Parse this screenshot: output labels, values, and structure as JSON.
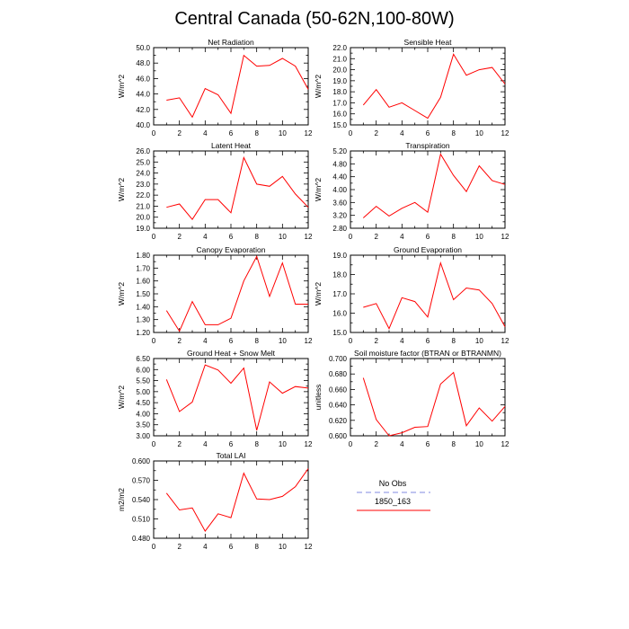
{
  "figure": {
    "title": "Central Canada (50-62N,100-80W)"
  },
  "legend": {
    "entries": [
      {
        "label": "No Obs",
        "color": "#9aa0e6",
        "style": "dashed"
      },
      {
        "label": "1850_163",
        "color": "#ff0000",
        "style": "solid"
      }
    ]
  },
  "chart_data": [
    {
      "type": "line",
      "title": "Net Radiation",
      "ylabel": "W/m^2",
      "x": [
        1,
        2,
        3,
        4,
        5,
        6,
        7,
        8,
        9,
        10,
        11,
        12
      ],
      "series": [
        {
          "name": "1850_163",
          "values": [
            43.2,
            43.5,
            41.0,
            44.7,
            43.9,
            41.5,
            49.0,
            47.6,
            47.7,
            48.6,
            47.6,
            44.6
          ]
        }
      ],
      "xlim": [
        0,
        12
      ],
      "ylim": [
        40,
        50
      ],
      "xticks": [
        0,
        2,
        4,
        6,
        8,
        10,
        12
      ],
      "yticks": [
        40,
        42,
        44,
        46,
        48,
        50
      ],
      "ytick_labels": [
        "40.0",
        "42.0",
        "44.0",
        "46.0",
        "48.0",
        "50.0"
      ]
    },
    {
      "type": "line",
      "title": "Sensible Heat",
      "ylabel": "W/m^2",
      "x": [
        1,
        2,
        3,
        4,
        5,
        6,
        7,
        8,
        9,
        10,
        11,
        12
      ],
      "series": [
        {
          "name": "1850_163",
          "values": [
            16.8,
            18.2,
            16.6,
            17.0,
            16.3,
            15.6,
            17.5,
            21.4,
            19.5,
            20.0,
            20.2,
            18.7
          ]
        }
      ],
      "xlim": [
        0,
        12
      ],
      "ylim": [
        15,
        22
      ],
      "xticks": [
        0,
        2,
        4,
        6,
        8,
        10,
        12
      ],
      "yticks": [
        15,
        16,
        17,
        18,
        19,
        20,
        21,
        22
      ],
      "ytick_labels": [
        "15.0",
        "16.0",
        "17.0",
        "18.0",
        "19.0",
        "20.0",
        "21.0",
        "22.0"
      ]
    },
    {
      "type": "line",
      "title": "Latent Heat",
      "ylabel": "W/m^2",
      "x": [
        1,
        2,
        3,
        4,
        5,
        6,
        7,
        8,
        9,
        10,
        11,
        12
      ],
      "series": [
        {
          "name": "1850_163",
          "values": [
            20.9,
            21.2,
            19.8,
            21.6,
            21.6,
            20.4,
            25.4,
            23.0,
            22.8,
            23.7,
            22.1,
            20.9
          ]
        }
      ],
      "xlim": [
        0,
        12
      ],
      "ylim": [
        19,
        26
      ],
      "xticks": [
        0,
        2,
        4,
        6,
        8,
        10,
        12
      ],
      "yticks": [
        19,
        20,
        21,
        22,
        23,
        24,
        25,
        26
      ],
      "ytick_labels": [
        "19.0",
        "20.0",
        "21.0",
        "22.0",
        "23.0",
        "24.0",
        "25.0",
        "26.0"
      ]
    },
    {
      "type": "line",
      "title": "Transpiration",
      "ylabel": "W/m^2",
      "x": [
        1,
        2,
        3,
        4,
        5,
        6,
        7,
        8,
        9,
        10,
        11,
        12
      ],
      "series": [
        {
          "name": "1850_163",
          "values": [
            3.12,
            3.48,
            3.18,
            3.42,
            3.6,
            3.3,
            5.1,
            4.44,
            3.94,
            4.74,
            4.28,
            4.16
          ]
        }
      ],
      "xlim": [
        0,
        12
      ],
      "ylim": [
        2.8,
        5.2
      ],
      "xticks": [
        0,
        2,
        4,
        6,
        8,
        10,
        12
      ],
      "yticks": [
        2.8,
        3.2,
        3.6,
        4.0,
        4.4,
        4.8,
        5.2
      ],
      "ytick_labels": [
        "2.80",
        "3.20",
        "3.60",
        "4.00",
        "4.40",
        "4.80",
        "5.20"
      ]
    },
    {
      "type": "line",
      "title": "Canopy Evaporation",
      "ylabel": "W/m^2",
      "x": [
        1,
        2,
        3,
        4,
        5,
        6,
        7,
        8,
        9,
        10,
        11,
        12
      ],
      "series": [
        {
          "name": "1850_163",
          "values": [
            1.37,
            1.21,
            1.44,
            1.26,
            1.26,
            1.31,
            1.6,
            1.79,
            1.48,
            1.74,
            1.42,
            1.42
          ]
        }
      ],
      "xlim": [
        0,
        12
      ],
      "ylim": [
        1.2,
        1.8
      ],
      "xticks": [
        0,
        2,
        4,
        6,
        8,
        10,
        12
      ],
      "yticks": [
        1.2,
        1.3,
        1.4,
        1.5,
        1.6,
        1.7,
        1.8
      ],
      "ytick_labels": [
        "1.20",
        "1.30",
        "1.40",
        "1.50",
        "1.60",
        "1.70",
        "1.80"
      ]
    },
    {
      "type": "line",
      "title": "Ground Evaporation",
      "ylabel": "W/m^2",
      "x": [
        1,
        2,
        3,
        4,
        5,
        6,
        7,
        8,
        9,
        10,
        11,
        12
      ],
      "series": [
        {
          "name": "1850_163",
          "values": [
            16.3,
            16.5,
            15.2,
            16.8,
            16.6,
            15.8,
            18.6,
            16.7,
            17.3,
            17.2,
            16.5,
            15.3
          ]
        }
      ],
      "xlim": [
        0,
        12
      ],
      "ylim": [
        15,
        19
      ],
      "xticks": [
        0,
        2,
        4,
        6,
        8,
        10,
        12
      ],
      "yticks": [
        15,
        16,
        17,
        18,
        19
      ],
      "ytick_labels": [
        "15.0",
        "16.0",
        "17.0",
        "18.0",
        "19.0"
      ]
    },
    {
      "type": "line",
      "title": "Ground Heat + Snow Melt",
      "ylabel": "W/m^2",
      "x": [
        1,
        2,
        3,
        4,
        5,
        6,
        7,
        8,
        9,
        10,
        11,
        12
      ],
      "series": [
        {
          "name": "1850_163",
          "values": [
            5.55,
            4.1,
            4.53,
            6.21,
            5.98,
            5.38,
            6.07,
            3.25,
            5.44,
            4.93,
            5.23,
            5.16
          ]
        }
      ],
      "xlim": [
        0,
        12
      ],
      "ylim": [
        3.0,
        6.5
      ],
      "xticks": [
        0,
        2,
        4,
        6,
        8,
        10,
        12
      ],
      "yticks": [
        3.0,
        3.5,
        4.0,
        4.5,
        5.0,
        5.5,
        6.0,
        6.5
      ],
      "ytick_labels": [
        "3.00",
        "3.50",
        "4.00",
        "4.50",
        "5.00",
        "5.50",
        "6.00",
        "6.50"
      ]
    },
    {
      "type": "line",
      "title": "Soil moisture factor (BTRAN or BTRANMN)",
      "ylabel": "unitless",
      "x": [
        1,
        2,
        3,
        4,
        5,
        6,
        7,
        8,
        9,
        10,
        11,
        12
      ],
      "series": [
        {
          "name": "1850_163",
          "values": [
            0.675,
            0.621,
            0.6,
            0.604,
            0.611,
            0.612,
            0.667,
            0.682,
            0.613,
            0.636,
            0.619,
            0.638
          ]
        }
      ],
      "xlim": [
        0,
        12
      ],
      "ylim": [
        0.6,
        0.7
      ],
      "xticks": [
        0,
        2,
        4,
        6,
        8,
        10,
        12
      ],
      "yticks": [
        0.6,
        0.62,
        0.64,
        0.66,
        0.68,
        0.7
      ],
      "ytick_labels": [
        "0.600",
        "0.620",
        "0.640",
        "0.660",
        "0.680",
        "0.700"
      ]
    },
    {
      "type": "line",
      "title": "Total LAI",
      "ylabel": "m2/m2",
      "x": [
        1,
        2,
        3,
        4,
        5,
        6,
        7,
        8,
        9,
        10,
        11,
        12
      ],
      "series": [
        {
          "name": "1850_163",
          "values": [
            0.55,
            0.524,
            0.527,
            0.491,
            0.518,
            0.512,
            0.581,
            0.541,
            0.54,
            0.545,
            0.56,
            0.588
          ]
        }
      ],
      "xlim": [
        0,
        12
      ],
      "ylim": [
        0.48,
        0.6
      ],
      "xticks": [
        0,
        2,
        4,
        6,
        8,
        10,
        12
      ],
      "yticks": [
        0.48,
        0.51,
        0.54,
        0.57,
        0.6
      ],
      "ytick_labels": [
        "0.480",
        "0.510",
        "0.540",
        "0.570",
        "0.600"
      ]
    }
  ]
}
